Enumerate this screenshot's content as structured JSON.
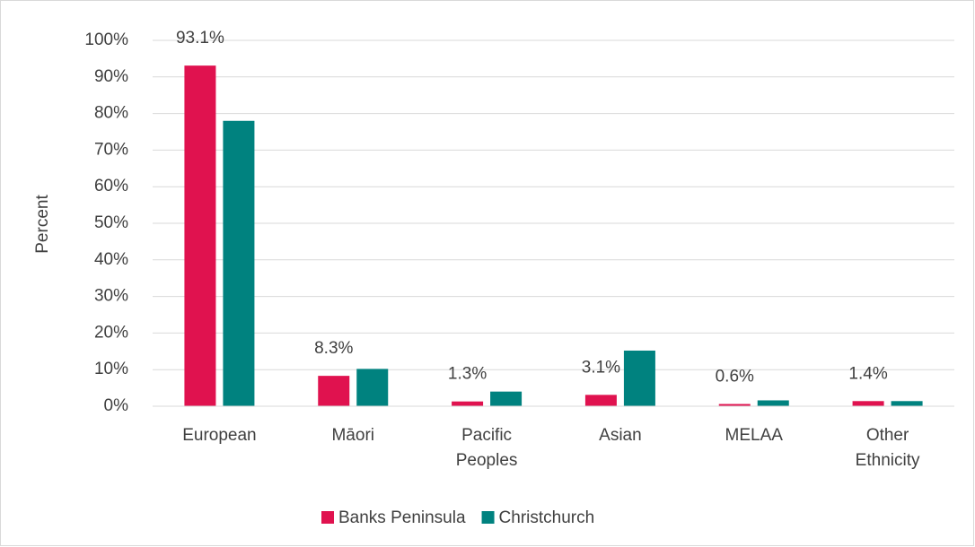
{
  "chart_data": {
    "type": "bar",
    "y_label": "Percent",
    "categories": [
      "European",
      "Māori",
      "Pacific Peoples",
      "Asian",
      "MELAA",
      "Other Ethnicity"
    ],
    "series": [
      {
        "name": "Banks Peninsula",
        "color": "#e0124f",
        "values": [
          93.1,
          8.3,
          1.3,
          3.1,
          0.6,
          1.4
        ],
        "value_labels": [
          "93.1%",
          "8.3%",
          "1.3%",
          "3.1%",
          "0.6%",
          "1.4%"
        ]
      },
      {
        "name": "Christchurch",
        "color": "#00827f",
        "values": [
          78,
          10.2,
          4.0,
          15.2,
          1.6,
          1.4
        ]
      }
    ],
    "ylim": [
      0,
      100
    ],
    "yticks": [
      {
        "value": 0,
        "label": "0%"
      },
      {
        "value": 10,
        "label": "10%"
      },
      {
        "value": 20,
        "label": "20%"
      },
      {
        "value": 30,
        "label": "30%"
      },
      {
        "value": 40,
        "label": "40%"
      },
      {
        "value": 50,
        "label": "50%"
      },
      {
        "value": 60,
        "label": "60%"
      },
      {
        "value": 70,
        "label": "70%"
      },
      {
        "value": 80,
        "label": "80%"
      },
      {
        "value": 90,
        "label": "90%"
      },
      {
        "value": 100,
        "label": "100%"
      }
    ],
    "grid": true,
    "legend": "bottom"
  }
}
